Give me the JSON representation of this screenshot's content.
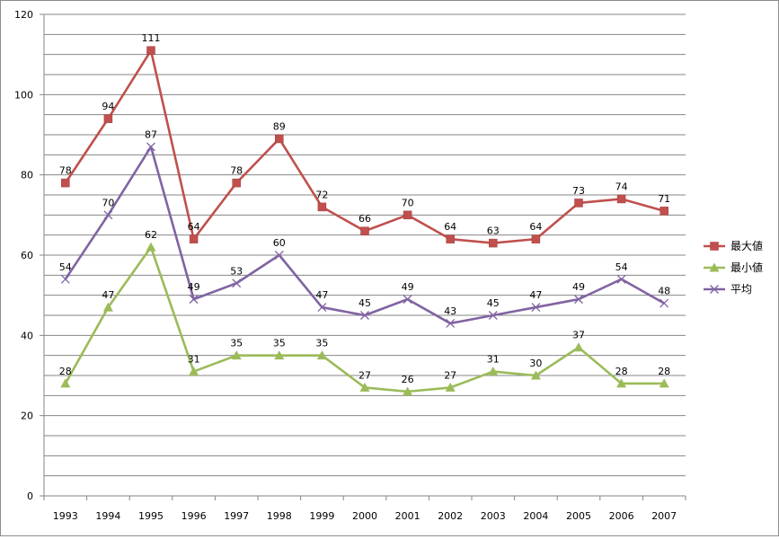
{
  "chart_data": {
    "type": "line",
    "title": "",
    "xlabel": "",
    "ylabel": "",
    "ylim": [
      0,
      120
    ],
    "y_ticks": [
      0,
      20,
      40,
      60,
      80,
      100,
      120
    ],
    "grid": true,
    "legend_position": "right",
    "categories": [
      "1993",
      "1994",
      "1995",
      "1996",
      "1997",
      "1998",
      "1999",
      "2000",
      "2001",
      "2002",
      "2003",
      "2004",
      "2005",
      "2006",
      "2007"
    ],
    "series": [
      {
        "name": "最大値",
        "color": "#c0504d",
        "marker": "square",
        "values": [
          78,
          94,
          111,
          64,
          78,
          89,
          72,
          66,
          70,
          64,
          63,
          64,
          73,
          74,
          71
        ]
      },
      {
        "name": "最小値",
        "color": "#9bbb59",
        "marker": "triangle",
        "values": [
          28,
          47,
          62,
          31,
          35,
          35,
          35,
          27,
          26,
          27,
          31,
          30,
          37,
          28,
          28
        ]
      },
      {
        "name": "平均",
        "color": "#8064a2",
        "marker": "x",
        "values": [
          54,
          70,
          87,
          49,
          53,
          60,
          47,
          45,
          49,
          43,
          45,
          47,
          49,
          54,
          48
        ]
      }
    ]
  }
}
